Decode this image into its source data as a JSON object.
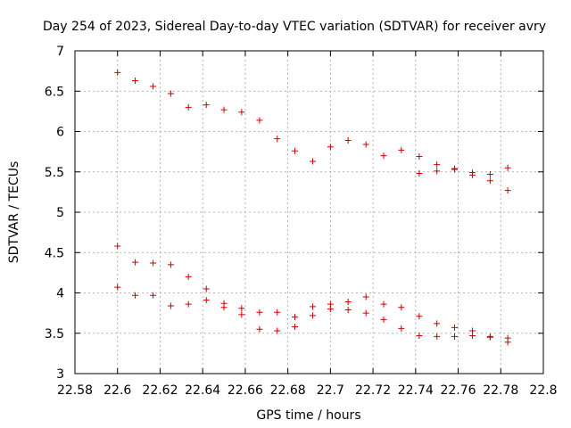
{
  "chart_data": {
    "type": "scatter",
    "title": "Day 254 of 2023, Sidereal Day-to-day VTEC variation (SDTVAR) for receiver avry",
    "xlabel": "GPS time / hours",
    "ylabel": "SDTVAR / TECUs",
    "xlim": [
      22.58,
      22.8
    ],
    "ylim": [
      3,
      7
    ],
    "grid": true,
    "xticks": [
      "22.58",
      "22.6",
      "22.62",
      "22.64",
      "22.66",
      "22.68",
      "22.7",
      "22.72",
      "22.74",
      "22.76",
      "22.78",
      "22.8"
    ],
    "yticks": [
      "3",
      "3.5",
      "4",
      "4.5",
      "5",
      "5.5",
      "6",
      "6.5",
      "7"
    ],
    "xtick_values": [
      22.58,
      22.6,
      22.62,
      22.64,
      22.66,
      22.68,
      22.7,
      22.72,
      22.74,
      22.76,
      22.78,
      22.8
    ],
    "ytick_values": [
      3,
      3.5,
      4,
      4.5,
      5,
      5.5,
      6,
      6.5,
      7
    ],
    "marker": "+",
    "series": [
      {
        "name": "upper",
        "color": "#cc0000",
        "points": [
          [
            22.6,
            6.73
          ],
          [
            22.6083,
            6.63
          ],
          [
            22.6167,
            6.56
          ],
          [
            22.625,
            6.47
          ],
          [
            22.6333,
            6.3
          ],
          [
            22.6417,
            6.33
          ],
          [
            22.65,
            6.27
          ],
          [
            22.6583,
            6.24
          ],
          [
            22.6667,
            6.14
          ],
          [
            22.675,
            5.91
          ],
          [
            22.6833,
            5.76
          ],
          [
            22.6917,
            5.63
          ],
          [
            22.7,
            5.81
          ],
          [
            22.7083,
            5.89
          ],
          [
            22.7167,
            5.84
          ],
          [
            22.725,
            5.7
          ],
          [
            22.7333,
            5.77
          ],
          [
            22.7417,
            5.69
          ],
          [
            22.7417,
            5.48
          ],
          [
            22.75,
            5.59
          ],
          [
            22.75,
            5.51
          ],
          [
            22.7583,
            5.54
          ],
          [
            22.7583,
            5.53
          ],
          [
            22.7667,
            5.49
          ],
          [
            22.7667,
            5.46
          ],
          [
            22.775,
            5.47
          ],
          [
            22.775,
            5.39
          ],
          [
            22.7833,
            5.55
          ],
          [
            22.7833,
            5.27
          ]
        ]
      },
      {
        "name": "middle",
        "color": "#cc0000",
        "points": [
          [
            22.6,
            4.58
          ],
          [
            22.6083,
            4.38
          ],
          [
            22.6167,
            4.37
          ],
          [
            22.625,
            4.35
          ],
          [
            22.6333,
            4.2
          ],
          [
            22.6417,
            4.05
          ],
          [
            22.65,
            3.87
          ],
          [
            22.6583,
            3.81
          ],
          [
            22.6667,
            3.76
          ],
          [
            22.675,
            3.76
          ],
          [
            22.6833,
            3.7
          ],
          [
            22.6917,
            3.83
          ],
          [
            22.7,
            3.86
          ],
          [
            22.7083,
            3.89
          ],
          [
            22.7167,
            3.95
          ],
          [
            22.725,
            3.86
          ],
          [
            22.7333,
            3.82
          ],
          [
            22.7417,
            3.71
          ],
          [
            22.75,
            3.62
          ],
          [
            22.7583,
            3.57
          ],
          [
            22.7667,
            3.53
          ],
          [
            22.775,
            3.46
          ],
          [
            22.7833,
            3.44
          ]
        ]
      },
      {
        "name": "lower",
        "color": "#cc0000",
        "points": [
          [
            22.6,
            4.07
          ],
          [
            22.6083,
            3.97
          ],
          [
            22.6167,
            3.97
          ],
          [
            22.625,
            3.84
          ],
          [
            22.6333,
            3.86
          ],
          [
            22.6417,
            3.91
          ],
          [
            22.65,
            3.82
          ],
          [
            22.6583,
            3.73
          ],
          [
            22.6667,
            3.55
          ],
          [
            22.675,
            3.53
          ],
          [
            22.6833,
            3.58
          ],
          [
            22.6917,
            3.72
          ],
          [
            22.7,
            3.8
          ],
          [
            22.7083,
            3.79
          ],
          [
            22.7167,
            3.75
          ],
          [
            22.725,
            3.67
          ],
          [
            22.7333,
            3.56
          ],
          [
            22.7417,
            3.47
          ],
          [
            22.75,
            3.46
          ],
          [
            22.7583,
            3.46
          ],
          [
            22.7667,
            3.47
          ],
          [
            22.775,
            3.45
          ],
          [
            22.7833,
            3.39
          ]
        ]
      }
    ]
  }
}
